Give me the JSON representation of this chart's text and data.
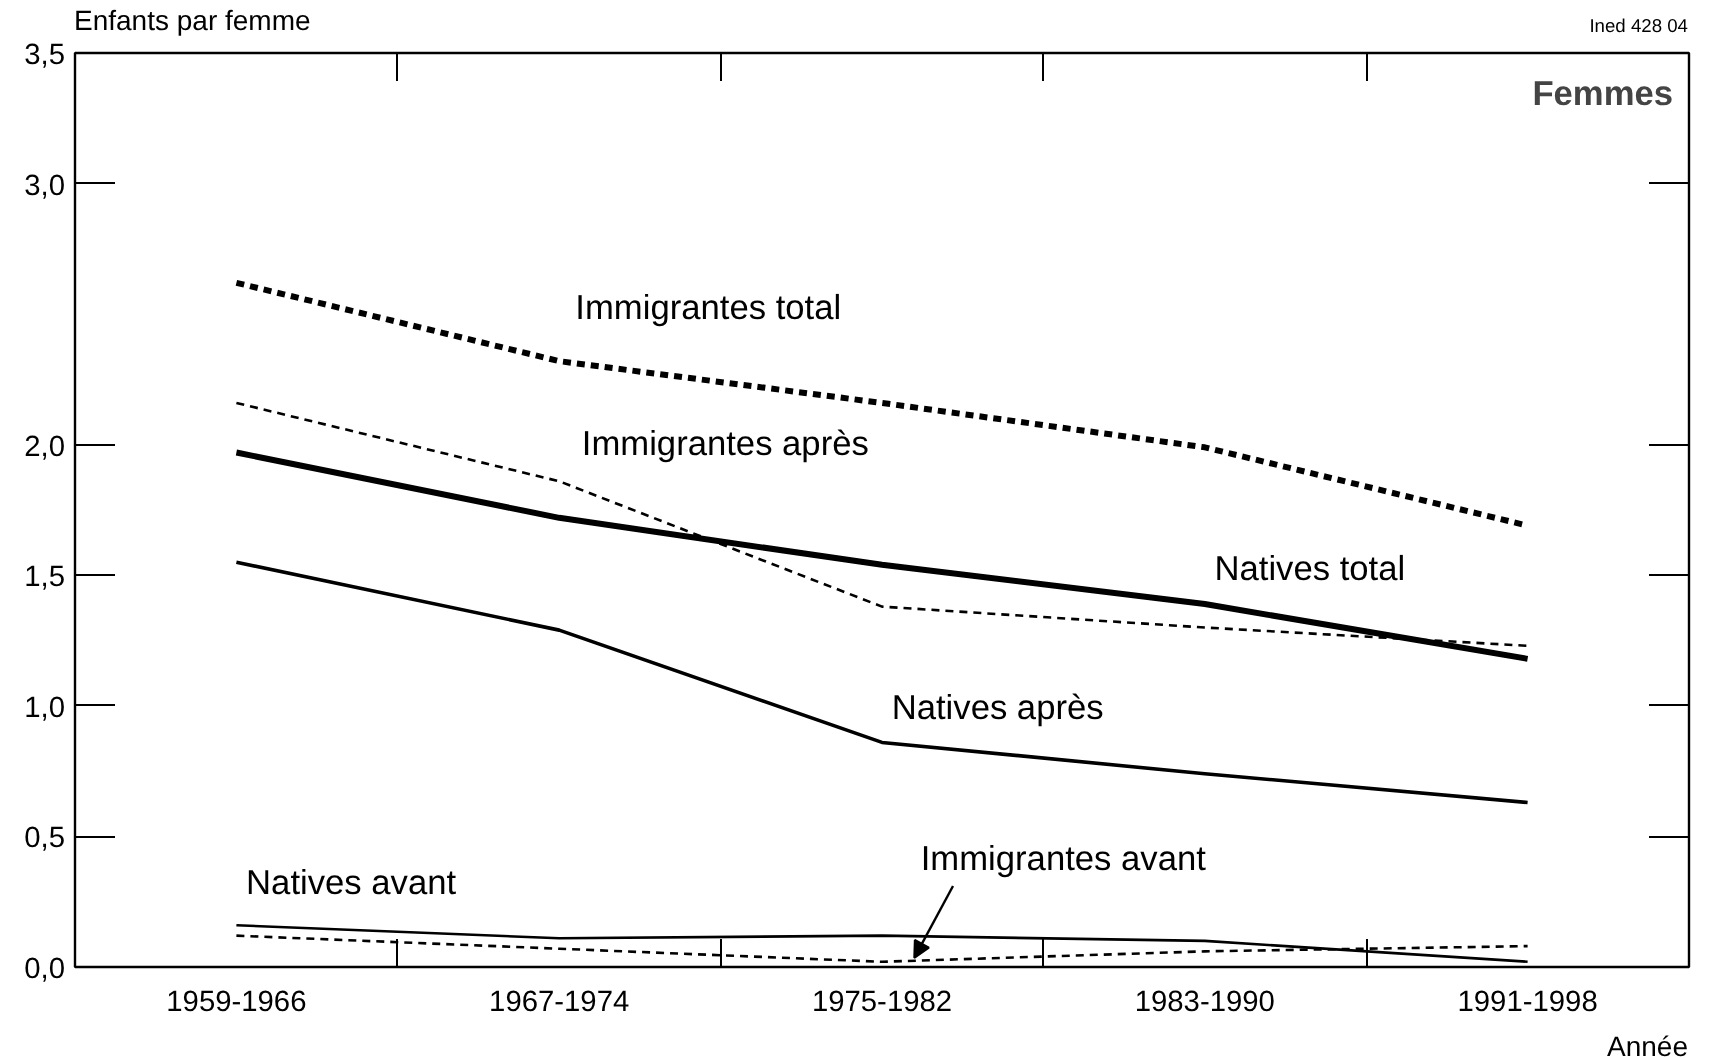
{
  "chart_data": {
    "type": "line",
    "title": "Femmes",
    "ylabel": "Enfants par femme",
    "xlabel": "Année",
    "annotations": [
      "Ined 428 04"
    ],
    "categories": [
      "1959-1966",
      "1967-1974",
      "1975-1982",
      "1983-1990",
      "1991-1998"
    ],
    "ylim": [
      0,
      3.5
    ],
    "yticks": [
      {
        "value": 0,
        "label": "0,0"
      },
      {
        "value": 0.5,
        "label": "0,5"
      },
      {
        "value": 1.0,
        "label": "1,0"
      },
      {
        "value": 1.5,
        "label": "1,5"
      },
      {
        "value": 2.0,
        "label": "2,0"
      },
      {
        "value": 3.0,
        "label": "3,0"
      },
      {
        "value": 3.5,
        "label": "3,5"
      }
    ],
    "grid": false,
    "legend": false,
    "marker": "none",
    "series": [
      {
        "name": "Immigrantes total",
        "color": "#000000",
        "line_style": "dashed",
        "values": [
          2.62,
          2.32,
          2.16,
          1.99,
          1.69
        ]
      },
      {
        "name": "Immigrantes après",
        "color": "#000000",
        "line_style": "dashed",
        "values": [
          2.16,
          1.86,
          1.38,
          1.3,
          1.23
        ]
      },
      {
        "name": "Natives total",
        "color": "#000000",
        "line_style": "solid",
        "values": [
          1.97,
          1.72,
          1.54,
          1.39,
          1.18
        ]
      },
      {
        "name": "Natives après",
        "color": "#000000",
        "line_style": "solid",
        "values": [
          1.55,
          1.29,
          0.86,
          0.74,
          0.63
        ]
      },
      {
        "name": "Natives avant",
        "color": "#000000",
        "line_style": "solid",
        "values": [
          0.16,
          0.11,
          0.12,
          0.1,
          0.02
        ]
      },
      {
        "name": "Immigrantes avant",
        "color": "#000000",
        "line_style": "dashed",
        "values": [
          0.12,
          0.07,
          0.02,
          0.06,
          0.08
        ]
      }
    ]
  }
}
